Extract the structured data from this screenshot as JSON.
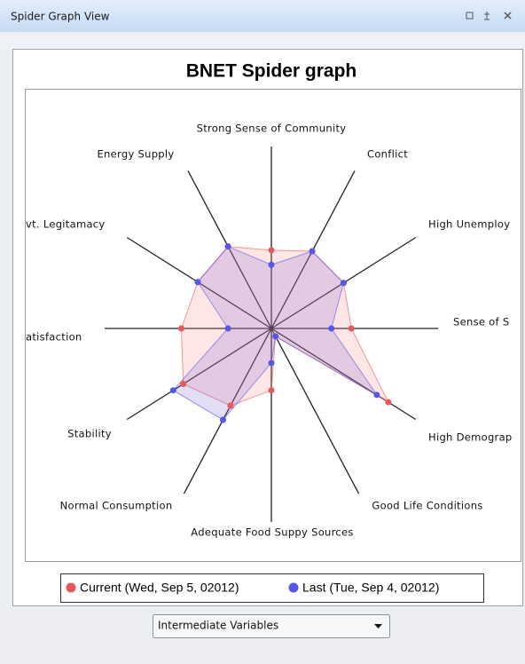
{
  "window": {
    "title": "Spider Graph View"
  },
  "chart_data": {
    "type": "radar",
    "title": "BNET Spider graph",
    "categories": [
      "Strong Sense of Community",
      "Conflict",
      "High Unemploy",
      "Sense of S",
      "High Demograp",
      "Good Life Conditions",
      "Adequate Food Suppy Sources",
      "Normal Consumption",
      "Stability",
      "atisfaction",
      "vt. Legitamacy",
      "Energy Supply"
    ],
    "series": [
      {
        "name": "Current (Wed, Sep 5, 02012)",
        "color": "#e8575c",
        "values": [
          0.43,
          0.49,
          0.5,
          0.48,
          0.81,
          0.05,
          0.34,
          0.49,
          0.61,
          0.54,
          0.51,
          0.52
        ]
      },
      {
        "name": "Last (Tue, Sep 4, 02012)",
        "color": "#5656ea",
        "values": [
          0.35,
          0.49,
          0.5,
          0.36,
          0.73,
          0.05,
          0.19,
          0.58,
          0.68,
          0.26,
          0.51,
          0.52
        ]
      }
    ],
    "rlim": [
      0,
      1
    ]
  },
  "controls": {
    "dropdown": "Intermediate Variables"
  }
}
